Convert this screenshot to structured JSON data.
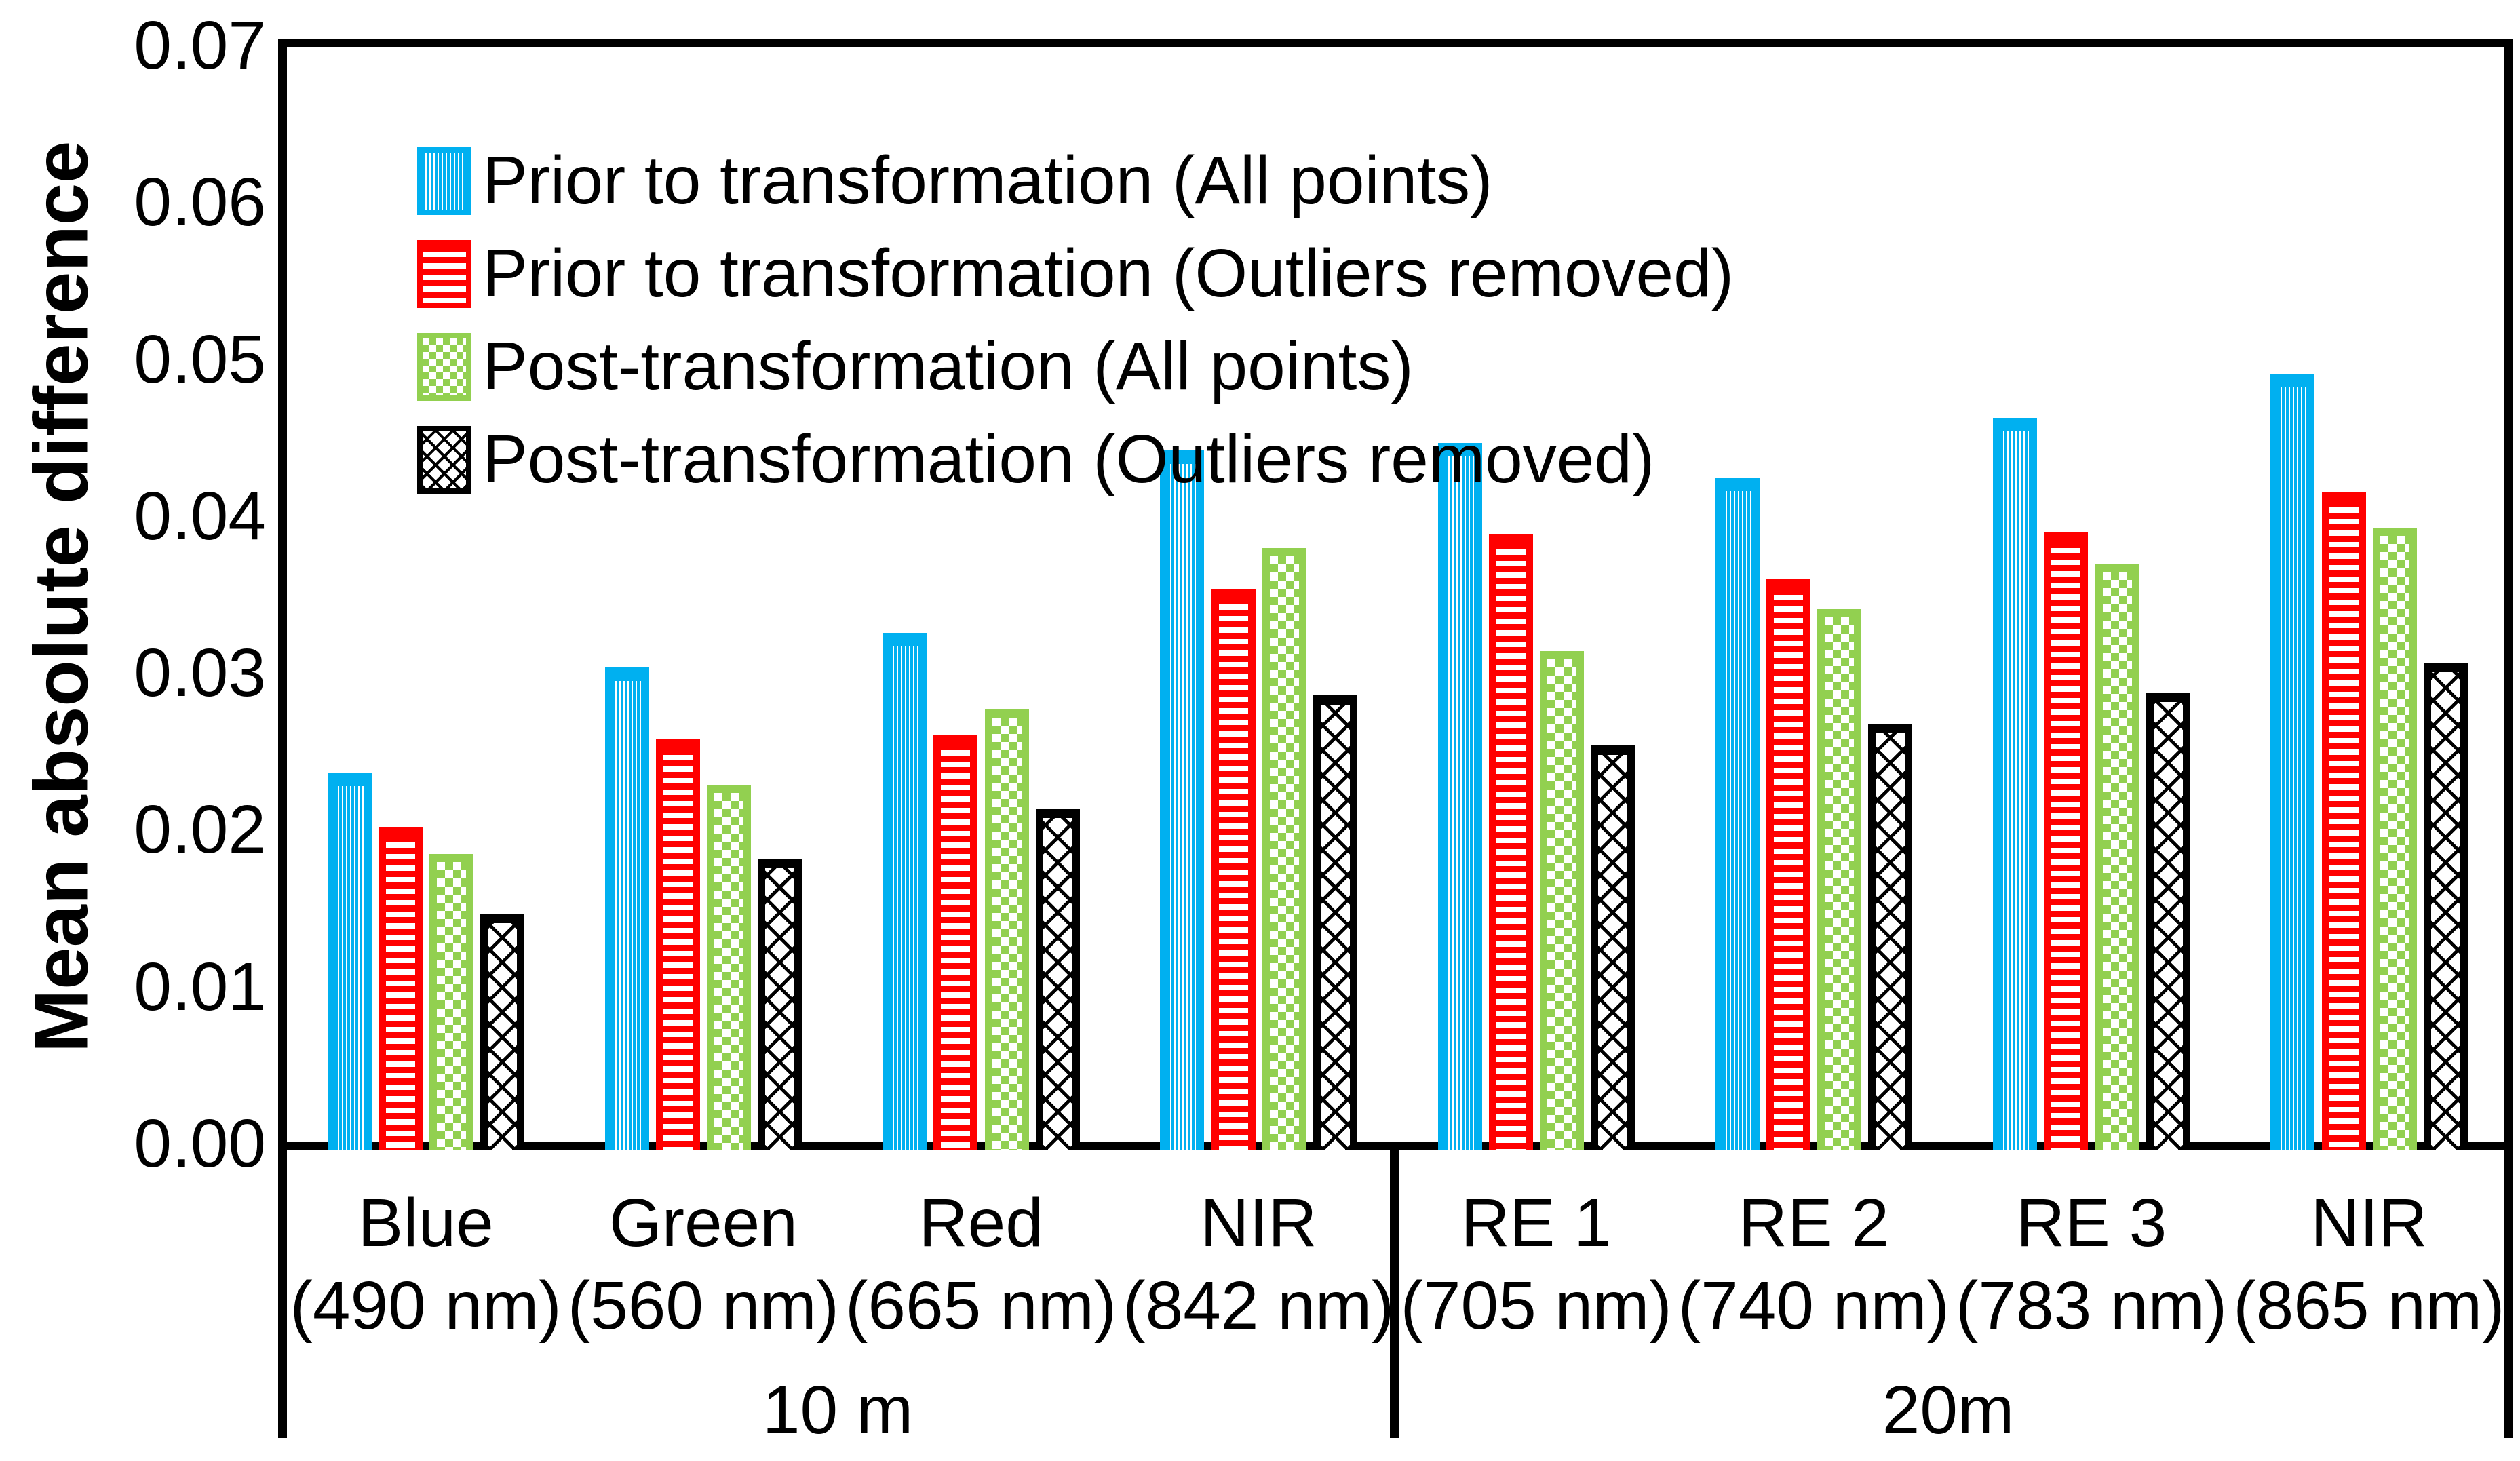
{
  "chart_data": {
    "type": "bar",
    "title": "",
    "xlabel": "",
    "ylabel": "Mean absolute difference",
    "ylim": [
      0,
      0.07
    ],
    "ytick_step": 0.01,
    "ytick_labels": [
      "0.00",
      "0.01",
      "0.02",
      "0.03",
      "0.04",
      "0.05",
      "0.06",
      "0.07"
    ],
    "grid": false,
    "legend_position": "top-left-inside",
    "categories": [
      {
        "label": "Blue",
        "sublabel": "(490 nm)",
        "group": "10 m"
      },
      {
        "label": "Green",
        "sublabel": "(560 nm)",
        "group": "10 m"
      },
      {
        "label": "Red",
        "sublabel": "(665 nm)",
        "group": "10 m"
      },
      {
        "label": "NIR",
        "sublabel": "(842 nm)",
        "group": "10 m"
      },
      {
        "label": "RE 1",
        "sublabel": "(705 nm)",
        "group": "20m"
      },
      {
        "label": "RE 2",
        "sublabel": "(740 nm)",
        "group": "20m"
      },
      {
        "label": "RE 3",
        "sublabel": "(783 nm)",
        "group": "20m"
      },
      {
        "label": "NIR",
        "sublabel": "(865 nm)",
        "group": "20m"
      }
    ],
    "groups": [
      {
        "label": "10 m",
        "span": [
          0,
          3
        ]
      },
      {
        "label": "20m",
        "span": [
          4,
          7
        ]
      }
    ],
    "series": [
      {
        "name": "Prior to transformation (All points)",
        "color": "#00b0f0",
        "pattern": "vertical-stripes",
        "values": [
          0.0238,
          0.0305,
          0.0327,
          0.0443,
          0.0448,
          0.0426,
          0.0464,
          0.0492
        ]
      },
      {
        "name": "Prior to transformation (Outliers removed)",
        "color": "#ff0000",
        "pattern": "horizontal-stripes",
        "values": [
          0.0203,
          0.0259,
          0.0262,
          0.0355,
          0.039,
          0.0361,
          0.0391,
          0.0417
        ]
      },
      {
        "name": "Post-transformation (All points)",
        "color": "#92d050",
        "pattern": "checkerboard",
        "values": [
          0.0186,
          0.023,
          0.0278,
          0.0381,
          0.0315,
          0.0342,
          0.0371,
          0.0394
        ]
      },
      {
        "name": "Post-transformation (Outliers removed)",
        "color": "#000000",
        "pattern": "diagonal-crosshatch",
        "values": [
          0.0148,
          0.0183,
          0.0215,
          0.0287,
          0.0255,
          0.0269,
          0.0289,
          0.0308
        ]
      }
    ]
  }
}
